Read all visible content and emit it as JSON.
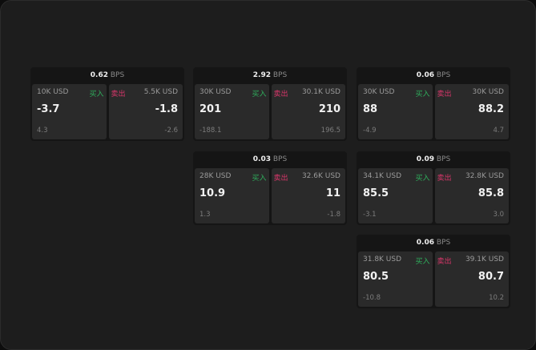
{
  "buy_label": "买入",
  "sell_label": "卖出",
  "unit": "BPS",
  "colors": {
    "buy": "#2fae5c",
    "sell": "#d9366a",
    "background": "#1d1d1d",
    "cell": "#2a2a2a"
  },
  "cards": [
    {
      "spread": "0.62",
      "bid_size": "10K USD",
      "bid": "-3.7",
      "bid_change": "4.3",
      "ask_size": "5.5K USD",
      "ask": "-1.8",
      "ask_change": "-2.6"
    },
    {
      "spread": "2.92",
      "bid_size": "30K USD",
      "bid": "201",
      "bid_change": "-188.1",
      "ask_size": "30.1K USD",
      "ask": "210",
      "ask_change": "196.5"
    },
    {
      "spread": "0.06",
      "bid_size": "30K USD",
      "bid": "88",
      "bid_change": "-4.9",
      "ask_size": "30K USD",
      "ask": "88.2",
      "ask_change": "4.7"
    },
    {
      "spread": "0.03",
      "bid_size": "28K USD",
      "bid": "10.9",
      "bid_change": "1.3",
      "ask_size": "32.6K USD",
      "ask": "11",
      "ask_change": "-1.8"
    },
    {
      "spread": "0.09",
      "bid_size": "34.1K USD",
      "bid": "85.5",
      "bid_change": "-3.1",
      "ask_size": "32.8K USD",
      "ask": "85.8",
      "ask_change": "3.0"
    },
    {
      "spread": "0.06",
      "bid_size": "31.8K USD",
      "bid": "80.5",
      "bid_change": "-10.8",
      "ask_size": "39.1K USD",
      "ask": "80.7",
      "ask_change": "10.2"
    }
  ]
}
